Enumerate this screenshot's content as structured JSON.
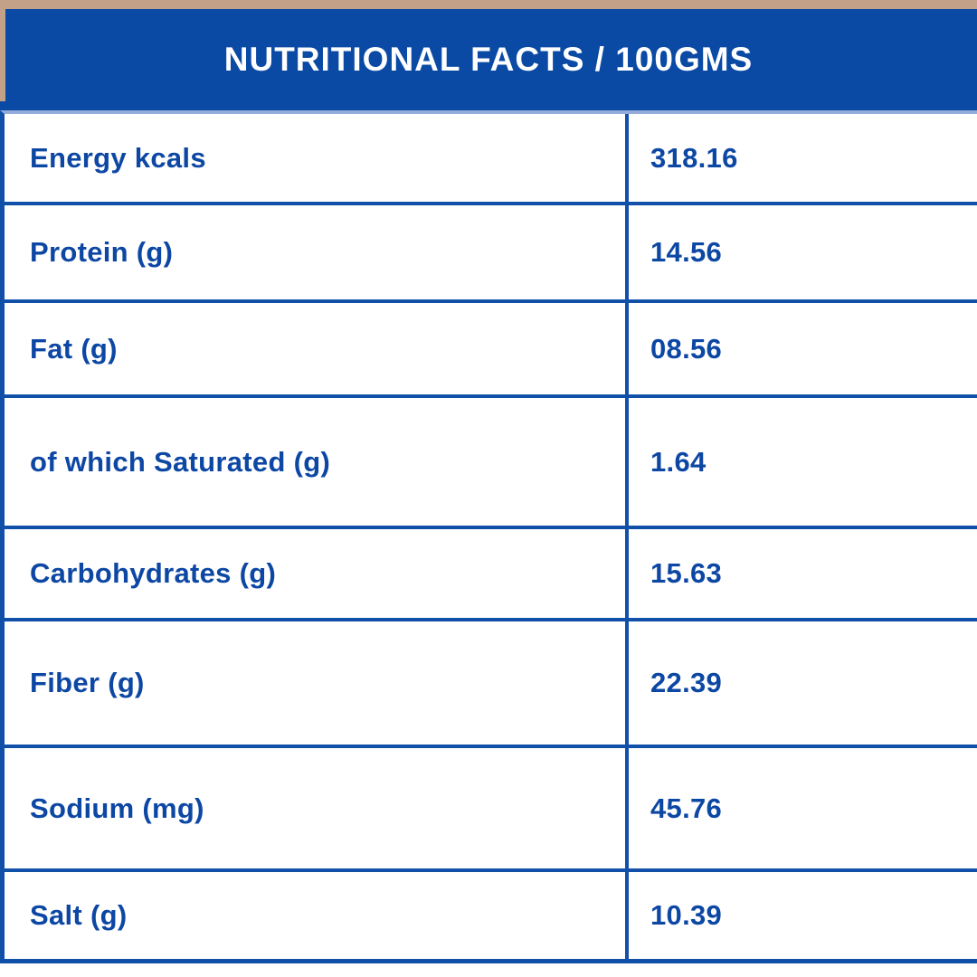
{
  "header": {
    "title": "NUTRITIONAL FACTS / 100GMS"
  },
  "table": {
    "rows": [
      {
        "label": "Energy kcals",
        "value": "318.16"
      },
      {
        "label": "Protein (g)",
        "value": "14.56"
      },
      {
        "label": "Fat (g)",
        "value": "08.56"
      },
      {
        "label": "of which Saturated (g)",
        "value": "1.64"
      },
      {
        "label": "Carbohydrates (g)",
        "value": "15.63"
      },
      {
        "label": "Fiber (g)",
        "value": "22.39"
      },
      {
        "label": "Sodium (mg)",
        "value": "45.76"
      },
      {
        "label": "Salt (g)",
        "value": "10.39"
      }
    ]
  },
  "colors": {
    "header-bg": "#0a4aa5",
    "border-blue": "#1150a8",
    "text-blue": "#0d47a4",
    "top-strip-tan": "#c2a188",
    "divider-light": "#93abdb",
    "header-text": "#ffffff",
    "background": "#ffffff"
  }
}
